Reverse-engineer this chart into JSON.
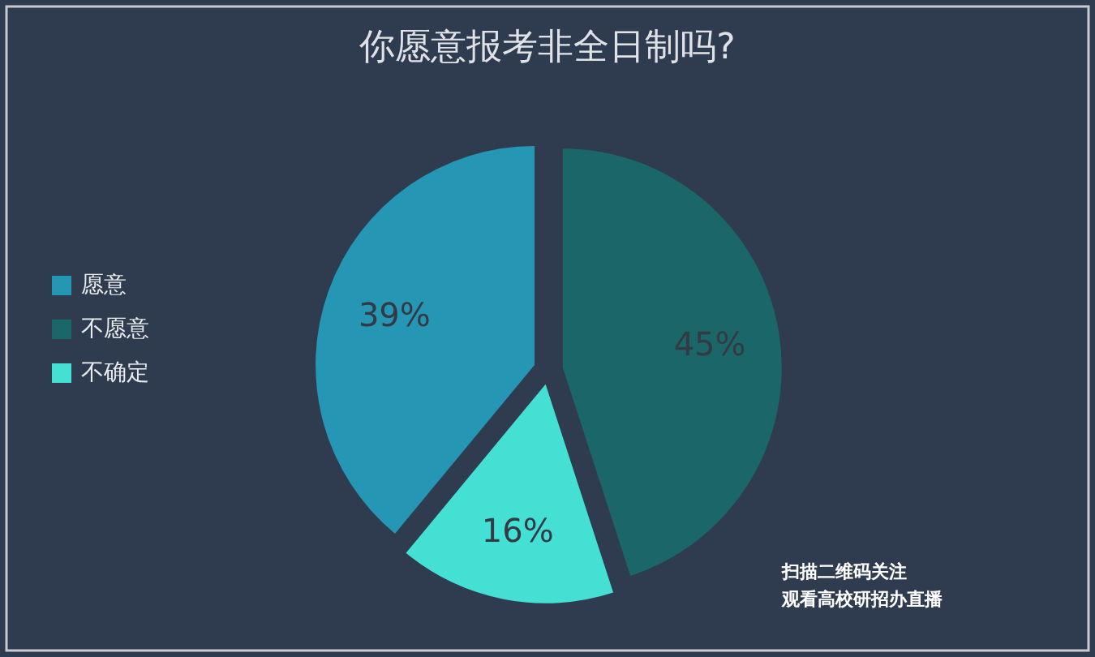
{
  "chart_data": {
    "type": "pie",
    "title": "你愿意报考非全日制吗?",
    "categories": [
      "愿意",
      "不愿意",
      "不确定"
    ],
    "values": [
      39,
      45,
      16
    ],
    "value_labels": [
      "39%",
      "45%",
      "16%"
    ],
    "colors": [
      "#2596b4",
      "#1b6668",
      "#45e0d4"
    ],
    "legend": "left",
    "annotations": [
      "扫描二维码关注",
      "观看高校研招办直播"
    ]
  }
}
